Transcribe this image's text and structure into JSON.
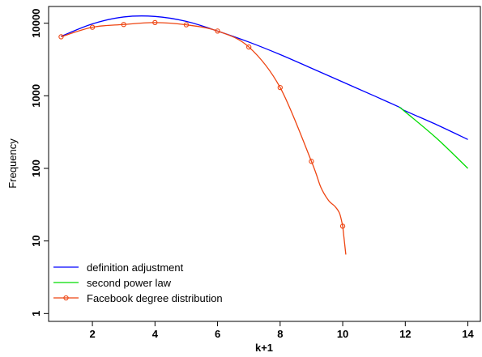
{
  "chart_data": {
    "type": "line",
    "title": "",
    "xlabel": "k+1",
    "ylabel": "Frequency",
    "xlim": [
      0.6,
      14.4
    ],
    "ylim": [
      0.78,
      17000
    ],
    "y_scale": "log",
    "grid": false,
    "legend_position": "bottom-left",
    "x_ticks": [
      2,
      4,
      6,
      8,
      10,
      12,
      14
    ],
    "x_tick_labels": [
      "2",
      "4",
      "6",
      "8",
      "10",
      "12",
      "14"
    ],
    "y_ticks": [
      1,
      10,
      100,
      1000,
      10000
    ],
    "y_tick_labels": [
      "1",
      "10",
      "100",
      "1000",
      "10000"
    ],
    "series": [
      {
        "name": "definition adjustment",
        "color": "#0000ff",
        "marker": "none",
        "x": [
          1,
          2,
          3,
          4,
          5,
          6,
          7,
          8,
          9,
          10,
          11,
          11.8,
          12,
          13,
          14
        ],
        "y": [
          6600,
          9800,
          12200,
          12400,
          10600,
          7800,
          5500,
          3700,
          2400,
          1550,
          1000,
          700,
          620,
          400,
          250
        ]
      },
      {
        "name": "second power law",
        "color": "#00dd00",
        "marker": "none",
        "x": [
          11.8,
          12,
          13,
          14
        ],
        "y": [
          700,
          600,
          260,
          100
        ]
      },
      {
        "name": "Facebook degree distribution",
        "color": "#ee4411",
        "marker": "circle",
        "x": [
          1,
          2,
          3,
          4,
          5,
          6,
          7,
          8,
          9,
          10
        ],
        "y": [
          6500,
          8800,
          9600,
          10200,
          9500,
          7800,
          4700,
          1300,
          125,
          16
        ],
        "tail": {
          "x": [
            9.3,
            9.55,
            9.75,
            9.9,
            10,
            10.1
          ],
          "y": [
            55,
            36,
            30,
            24,
            16,
            6.5
          ]
        }
      }
    ]
  }
}
